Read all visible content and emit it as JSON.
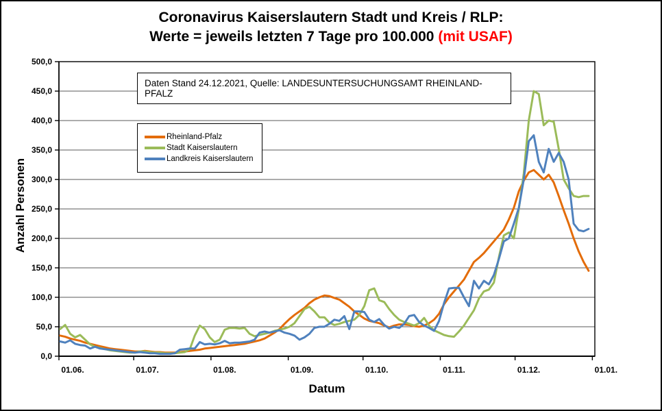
{
  "title": {
    "line1": "Coronavirus Kaiserslautern Stadt und Kreis / RLP:",
    "line2_black": "Werte = jeweils letzten 7 Tage pro 100.000 ",
    "line2_red": "(mit USAF)"
  },
  "info_box": {
    "text": "Daten Stand 24.12.2021, Quelle: LANDESUNTERSUCHUNGSAMT RHEINLAND-PFALZ"
  },
  "axes": {
    "y_label": "Anzahl Personen",
    "x_label": "Datum",
    "y_ticks": [
      {
        "label": "0,0",
        "value": 0
      },
      {
        "label": "50,0",
        "value": 50
      },
      {
        "label": "100,0",
        "value": 100
      },
      {
        "label": "150,0",
        "value": 150
      },
      {
        "label": "200,0",
        "value": 200
      },
      {
        "label": "250,0",
        "value": 250
      },
      {
        "label": "300,0",
        "value": 300
      },
      {
        "label": "350,0",
        "value": 350
      },
      {
        "label": "400,0",
        "value": 400
      },
      {
        "label": "450,0",
        "value": 450
      },
      {
        "label": "500,0",
        "value": 500
      }
    ],
    "x_ticks": [
      {
        "label": "01.06.",
        "day": 0
      },
      {
        "label": "01.07.",
        "day": 30
      },
      {
        "label": "01.08.",
        "day": 61
      },
      {
        "label": "01.09.",
        "day": 92
      },
      {
        "label": "01.10.",
        "day": 122
      },
      {
        "label": "01.11.",
        "day": 153
      },
      {
        "label": "01.12.",
        "day": 183
      },
      {
        "label": "01.01.",
        "day": 214
      }
    ],
    "days_total": 215
  },
  "legend": [
    {
      "label": "Rheinland-Pfalz",
      "color": "#E36C09"
    },
    {
      "label": "Stadt Kaiserslautern",
      "color": "#9BBB59"
    },
    {
      "label": "Landkreis Kaiserslautern",
      "color": "#4F81BD"
    }
  ],
  "chart_data": {
    "type": "line",
    "title": "Coronavirus Kaiserslautern Stadt und Kreis / RLP: Werte = jeweils letzten 7 Tage pro 100.000 (mit USAF)",
    "xlabel": "Datum",
    "ylabel": "Anzahl Personen",
    "ylim": [
      0,
      500
    ],
    "y_tick_step": 50,
    "x_start": "01.06.",
    "x_end": "01.01.",
    "x_tick_labels": [
      "01.06.",
      "01.07.",
      "01.08.",
      "01.09.",
      "01.10.",
      "01.11.",
      "01.12.",
      "01.01."
    ],
    "sample_step_days": 2,
    "grid": "horizontal",
    "legend_position": "upper-left-inside",
    "series": [
      {
        "name": "Rheinland-Pfalz",
        "color": "#E36C09",
        "values": [
          35,
          33,
          30,
          28,
          26,
          23,
          21,
          19,
          17,
          15,
          13,
          12,
          11,
          10,
          9,
          8,
          8,
          9,
          8,
          7,
          7,
          6,
          6,
          6,
          7,
          8,
          9,
          10,
          11,
          13,
          14,
          15,
          16,
          17,
          18,
          19,
          20,
          21,
          23,
          25,
          27,
          30,
          35,
          40,
          46,
          55,
          63,
          70,
          76,
          82,
          90,
          96,
          100,
          103,
          102,
          99,
          96,
          90,
          84,
          76,
          70,
          64,
          60,
          58,
          56,
          52,
          49,
          52,
          54,
          54,
          53,
          51,
          50,
          52,
          56,
          62,
          72,
          88,
          100,
          110,
          120,
          130,
          145,
          160,
          167,
          175,
          185,
          195,
          205,
          215,
          232,
          252,
          280,
          298,
          312,
          316,
          308,
          300,
          308,
          295,
          272,
          248,
          225,
          200,
          178,
          160,
          145
        ]
      },
      {
        "name": "Stadt Kaiserslautern",
        "color": "#9BBB59",
        "values": [
          46,
          53,
          38,
          32,
          36,
          28,
          20,
          16,
          14,
          12,
          10,
          9,
          8,
          7,
          6,
          6,
          8,
          8,
          7,
          6,
          6,
          5,
          5,
          5,
          6,
          7,
          12,
          35,
          52,
          46,
          32,
          24,
          28,
          45,
          48,
          48,
          47,
          48,
          38,
          34,
          36,
          38,
          40,
          43,
          45,
          47,
          50,
          56,
          68,
          80,
          84,
          76,
          66,
          66,
          57,
          53,
          55,
          58,
          60,
          62,
          70,
          85,
          112,
          115,
          95,
          92,
          80,
          70,
          62,
          58,
          55,
          52,
          56,
          65,
          52,
          44,
          40,
          36,
          34,
          33,
          42,
          52,
          65,
          78,
          98,
          110,
          113,
          125,
          168,
          205,
          210,
          200,
          250,
          310,
          400,
          450,
          445,
          392,
          400,
          398,
          352,
          300,
          285,
          272,
          270,
          272,
          272
        ]
      },
      {
        "name": "Landkreis Kaiserslautern",
        "color": "#4F81BD",
        "values": [
          25,
          23,
          27,
          21,
          19,
          18,
          13,
          16,
          13,
          12,
          11,
          10,
          9,
          8,
          7,
          6,
          7,
          6,
          5,
          5,
          4,
          4,
          4,
          5,
          11,
          12,
          13,
          13,
          24,
          20,
          21,
          20,
          22,
          26,
          22,
          23,
          23,
          24,
          25,
          28,
          40,
          42,
          40,
          42,
          44,
          40,
          38,
          35,
          28,
          32,
          38,
          48,
          50,
          50,
          55,
          62,
          60,
          68,
          46,
          76,
          76,
          75,
          62,
          58,
          63,
          53,
          47,
          50,
          48,
          55,
          68,
          70,
          58,
          52,
          48,
          43,
          60,
          90,
          115,
          116,
          116,
          100,
          85,
          128,
          115,
          128,
          122,
          138,
          165,
          195,
          200,
          225,
          252,
          300,
          365,
          375,
          330,
          312,
          352,
          330,
          345,
          330,
          300,
          225,
          214,
          212,
          216
        ]
      }
    ]
  }
}
